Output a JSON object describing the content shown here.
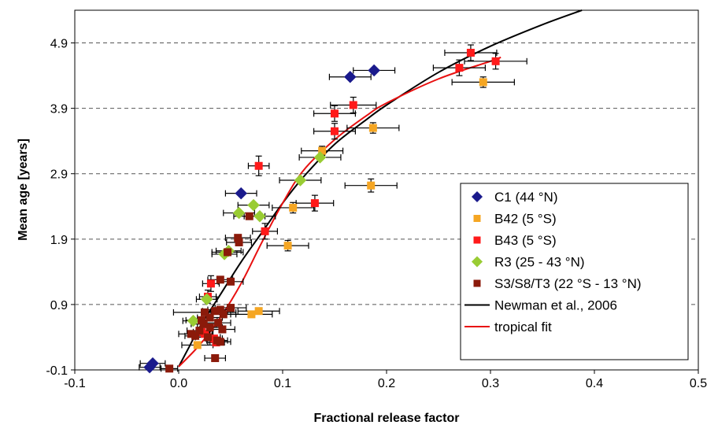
{
  "chart_data": {
    "type": "scatter",
    "xlabel": "Fractional release factor",
    "ylabel": "Mean age [years]",
    "xlim": [
      -0.1,
      0.5
    ],
    "ylim": [
      -0.1,
      5.4
    ],
    "xticks": [
      "-0.1",
      "0.0",
      "0.1",
      "0.2",
      "0.3",
      "0.4",
      "0.5"
    ],
    "yticks": [
      "-0.1",
      "0.9",
      "1.9",
      "2.9",
      "3.9",
      "4.9"
    ],
    "grid": "horizontal dashed",
    "legend_position": "right-lower",
    "series": [
      {
        "name": "C1 (44 °N)",
        "marker": "diamond",
        "color": "#1a1a8c",
        "points": [
          {
            "x": 0.165,
            "y": 4.38,
            "xerr": 0.02
          },
          {
            "x": 0.188,
            "y": 4.48,
            "xerr": 0.02
          },
          {
            "x": 0.06,
            "y": 2.6,
            "xerr": 0.015
          },
          {
            "x": -0.025,
            "y": 0.0,
            "xerr": 0.012
          },
          {
            "x": -0.028,
            "y": -0.06,
            "xerr": 0.01
          }
        ]
      },
      {
        "name": "B42 (5 °S)",
        "marker": "square",
        "color": "#f5a623",
        "points": [
          {
            "x": 0.293,
            "y": 4.3,
            "xerr": 0.03,
            "yerr": 0.08
          },
          {
            "x": 0.187,
            "y": 3.6,
            "xerr": 0.025,
            "yerr": 0.08
          },
          {
            "x": 0.138,
            "y": 3.25,
            "xerr": 0.02,
            "yerr": 0.07
          },
          {
            "x": 0.185,
            "y": 2.72,
            "xerr": 0.025,
            "yerr": 0.1
          },
          {
            "x": 0.11,
            "y": 2.38,
            "xerr": 0.02,
            "yerr": 0.08
          },
          {
            "x": 0.105,
            "y": 1.8,
            "xerr": 0.02,
            "yerr": 0.08
          },
          {
            "x": 0.077,
            "y": 0.8,
            "xerr": 0.02
          },
          {
            "x": 0.07,
            "y": 0.75,
            "xerr": 0.02
          },
          {
            "x": 0.018,
            "y": 0.28,
            "xerr": 0.015
          }
        ]
      },
      {
        "name": "B43 (5 °S)",
        "marker": "square",
        "color": "#ff1a1a",
        "points": [
          {
            "x": 0.281,
            "y": 4.75,
            "xerr": 0.025,
            "yerr": 0.12
          },
          {
            "x": 0.305,
            "y": 4.62,
            "xerr": 0.03,
            "yerr": 0.12
          },
          {
            "x": 0.27,
            "y": 4.52,
            "xerr": 0.025,
            "yerr": 0.12
          },
          {
            "x": 0.168,
            "y": 3.95,
            "xerr": 0.022,
            "yerr": 0.12
          },
          {
            "x": 0.15,
            "y": 3.82,
            "xerr": 0.02,
            "yerr": 0.12
          },
          {
            "x": 0.15,
            "y": 3.55,
            "xerr": 0.02,
            "yerr": 0.12
          },
          {
            "x": 0.077,
            "y": 3.02,
            "xerr": 0.01,
            "yerr": 0.15
          },
          {
            "x": 0.131,
            "y": 2.45,
            "xerr": 0.018,
            "yerr": 0.12
          },
          {
            "x": 0.083,
            "y": 2.02,
            "xerr": 0.012,
            "yerr": 0.12
          },
          {
            "x": 0.031,
            "y": 1.22,
            "xerr": 0.008,
            "yerr": 0.12
          },
          {
            "x": 0.028,
            "y": 1.02,
            "xerr": 0.008,
            "yerr": 0.1
          },
          {
            "x": 0.025,
            "y": 0.45,
            "xerr": 0.008
          },
          {
            "x": 0.034,
            "y": 0.38,
            "xerr": 0.008
          },
          {
            "x": 0.036,
            "y": 0.32,
            "xerr": 0.008
          },
          {
            "x": 0.022,
            "y": 0.48,
            "xerr": 0.008
          }
        ]
      },
      {
        "name": "R3 (25 - 43 °N)",
        "marker": "diamond",
        "color": "#99cc33",
        "points": [
          {
            "x": 0.136,
            "y": 3.15,
            "xerr": 0.02
          },
          {
            "x": 0.117,
            "y": 2.8,
            "xerr": 0.02
          },
          {
            "x": 0.072,
            "y": 2.42,
            "xerr": 0.015
          },
          {
            "x": 0.058,
            "y": 2.3,
            "xerr": 0.015
          },
          {
            "x": 0.078,
            "y": 2.25,
            "xerr": 0.015
          },
          {
            "x": 0.048,
            "y": 1.72,
            "xerr": 0.012
          },
          {
            "x": 0.044,
            "y": 1.67,
            "xerr": 0.012
          },
          {
            "x": 0.027,
            "y": 0.98,
            "xerr": 0.01
          },
          {
            "x": 0.014,
            "y": 0.65,
            "xerr": 0.01
          }
        ]
      },
      {
        "name": "S3/S8/T3 (22 °S - 13 °N)",
        "marker": "square",
        "color": "#8b1a0a",
        "points": [
          {
            "x": 0.068,
            "y": 2.25,
            "xerr": 0.015
          },
          {
            "x": 0.057,
            "y": 1.92,
            "xerr": 0.012
          },
          {
            "x": 0.058,
            "y": 1.85,
            "xerr": 0.012
          },
          {
            "x": 0.047,
            "y": 1.7,
            "xerr": 0.015
          },
          {
            "x": 0.04,
            "y": 1.28,
            "xerr": 0.012
          },
          {
            "x": 0.05,
            "y": 1.25,
            "xerr": 0.012
          },
          {
            "x": 0.05,
            "y": 0.85,
            "xerr": 0.015
          },
          {
            "x": 0.04,
            "y": 0.82,
            "xerr": 0.012
          },
          {
            "x": 0.035,
            "y": 0.8,
            "xerr": 0.012
          },
          {
            "x": 0.025,
            "y": 0.78,
            "xerr": 0.03
          },
          {
            "x": 0.043,
            "y": 0.75,
            "xerr": 0.012
          },
          {
            "x": 0.03,
            "y": 0.7,
            "xerr": 0.012
          },
          {
            "x": 0.022,
            "y": 0.66,
            "xerr": 0.015
          },
          {
            "x": 0.038,
            "y": 0.62,
            "xerr": 0.012
          },
          {
            "x": 0.024,
            "y": 0.6,
            "xerr": 0.012
          },
          {
            "x": 0.03,
            "y": 0.55,
            "xerr": 0.012
          },
          {
            "x": 0.042,
            "y": 0.52,
            "xerr": 0.012
          },
          {
            "x": 0.02,
            "y": 0.5,
            "xerr": 0.012
          },
          {
            "x": 0.012,
            "y": 0.45,
            "xerr": 0.012
          },
          {
            "x": 0.016,
            "y": 0.42,
            "xerr": 0.01
          },
          {
            "x": 0.028,
            "y": 0.4,
            "xerr": 0.012
          },
          {
            "x": 0.037,
            "y": 0.35,
            "xerr": 0.01
          },
          {
            "x": 0.04,
            "y": 0.33,
            "xerr": 0.01
          },
          {
            "x": 0.035,
            "y": 0.08,
            "xerr": 0.01
          },
          {
            "x": -0.009,
            "y": -0.08,
            "xerr": 0.008
          }
        ]
      },
      {
        "name": "Newman et al., 2006",
        "type": "line",
        "color": "#000000",
        "x": [
          0.0,
          0.01,
          0.02,
          0.04,
          0.06,
          0.08,
          0.1,
          0.12,
          0.15,
          0.18,
          0.2,
          0.25,
          0.3,
          0.35,
          0.388
        ],
        "y": [
          -0.05,
          0.25,
          0.55,
          1.05,
          1.55,
          2.0,
          2.45,
          2.85,
          3.35,
          3.72,
          3.95,
          4.45,
          4.85,
          5.18,
          5.4
        ]
      },
      {
        "name": "tropical fit",
        "type": "line",
        "color": "#e81010",
        "x": [
          0.0,
          0.02,
          0.04,
          0.06,
          0.08,
          0.1,
          0.12,
          0.15,
          0.18,
          0.2,
          0.25,
          0.3,
          0.31
        ],
        "y": [
          -0.05,
          0.28,
          0.7,
          1.22,
          1.85,
          2.45,
          2.95,
          3.42,
          3.78,
          3.98,
          4.35,
          4.62,
          4.68
        ]
      }
    ]
  }
}
